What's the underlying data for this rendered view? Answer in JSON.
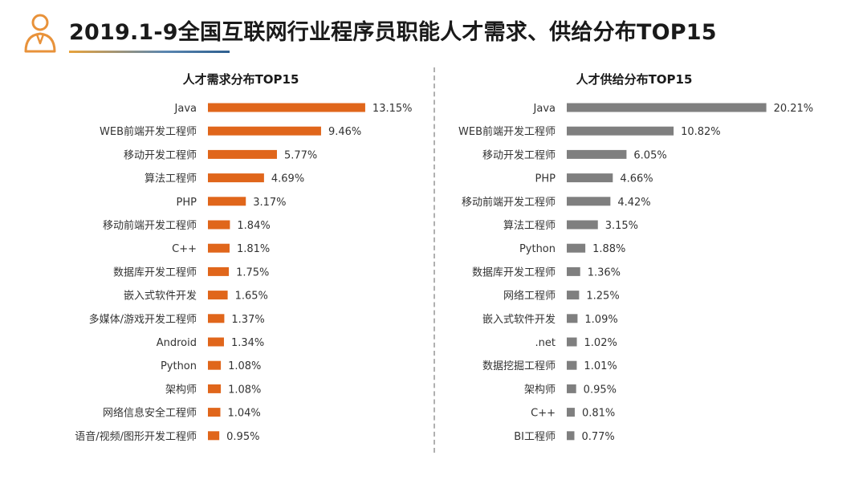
{
  "title": "2019.1-9全国互联网行业程序员职能人才需求、供给分布TOP15",
  "chart_data": [
    {
      "type": "bar",
      "orientation": "horizontal",
      "title": "人才需求分布TOP15",
      "color": "#E0661B",
      "unit": "%",
      "categories": [
        "Java",
        "WEB前端开发工程师",
        "移动开发工程师",
        "算法工程师",
        "PHP",
        "移动前端开发工程师",
        "C++",
        "数据库开发工程师",
        "嵌入式软件开发",
        "多媒体/游戏开发工程师",
        "Android",
        "Python",
        "架构师",
        "网络信息安全工程师",
        "语音/视频/图形开发工程师"
      ],
      "values": [
        13.15,
        9.46,
        5.77,
        4.69,
        3.17,
        1.84,
        1.81,
        1.75,
        1.65,
        1.37,
        1.34,
        1.08,
        1.08,
        1.04,
        0.95
      ],
      "labels": [
        "13.15%",
        "9.46%",
        "5.77%",
        "4.69%",
        "3.17%",
        "1.84%",
        "1.81%",
        "1.75%",
        "1.65%",
        "1.37%",
        "1.34%",
        "1.08%",
        "1.08%",
        "1.04%",
        "0.95%"
      ]
    },
    {
      "type": "bar",
      "orientation": "horizontal",
      "title": "人才供给分布TOP15",
      "color": "#7F7F7F",
      "unit": "%",
      "categories": [
        "Java",
        "WEB前端开发工程师",
        "移动开发工程师",
        "PHP",
        "移动前端开发工程师",
        "算法工程师",
        "Python",
        "数据库开发工程师",
        "网络工程师",
        "嵌入式软件开发",
        ".net",
        "数据挖掘工程师",
        "架构师",
        "C++",
        "BI工程师"
      ],
      "values": [
        20.21,
        10.82,
        6.05,
        4.66,
        4.42,
        3.15,
        1.88,
        1.36,
        1.25,
        1.09,
        1.02,
        1.01,
        0.95,
        0.81,
        0.77
      ],
      "labels": [
        "20.21%",
        "10.82%",
        "6.05%",
        "4.66%",
        "4.42%",
        "3.15%",
        "1.88%",
        "1.36%",
        "1.25%",
        "1.09%",
        "1.02%",
        "1.01%",
        "0.95%",
        "0.81%",
        "0.77%"
      ]
    }
  ]
}
